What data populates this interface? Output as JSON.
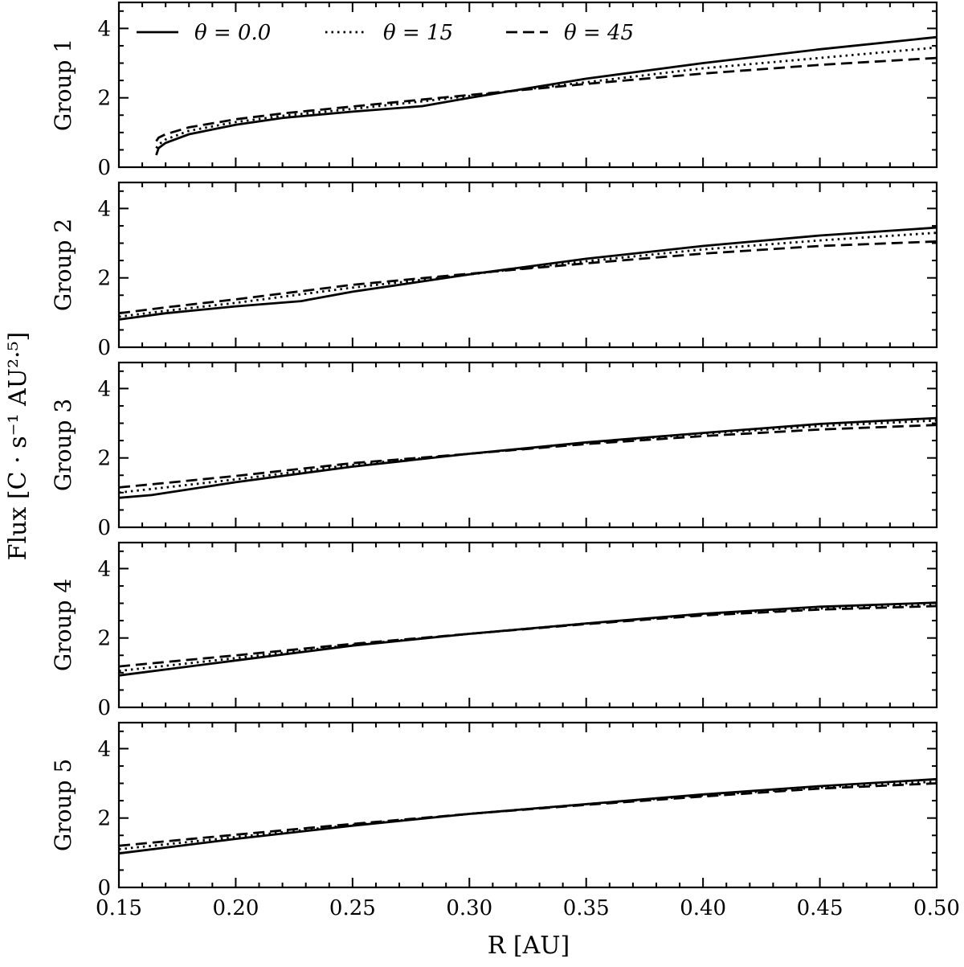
{
  "chart_data": {
    "type": "line",
    "xlabel": "R [AU]",
    "ylabel": "Flux [C · s⁻¹ AU²·⁵]",
    "xlim": [
      0.15,
      0.5
    ],
    "ylim": [
      0,
      4.75
    ],
    "x_ticks": [
      "0.15",
      "0.20",
      "0.25",
      "0.30",
      "0.35",
      "0.40",
      "0.45",
      "0.50"
    ],
    "y_ticks": [
      "0",
      "2",
      "4"
    ],
    "legend": {
      "placement": "top (inside first panel)",
      "entries": [
        {
          "label": "θ = 0.0",
          "style": "solid"
        },
        {
          "label": "θ = 15",
          "style": "dotted"
        },
        {
          "label": "θ = 45",
          "style": "dashed"
        }
      ]
    },
    "panels": [
      {
        "label": "Group 1",
        "series": [
          {
            "style": "solid",
            "x": [
              0.166,
              0.167,
              0.17,
              0.18,
              0.2,
              0.22,
              0.25,
              0.28,
              0.3,
              0.35,
              0.4,
              0.45,
              0.5
            ],
            "y": [
              0.35,
              0.55,
              0.7,
              0.95,
              1.22,
              1.42,
              1.6,
              1.76,
              2.0,
              2.55,
              3.0,
              3.4,
              3.75
            ]
          },
          {
            "style": "dotted",
            "x": [
              0.166,
              0.167,
              0.17,
              0.18,
              0.2,
              0.22,
              0.25,
              0.28,
              0.3,
              0.35,
              0.4,
              0.45,
              0.5
            ],
            "y": [
              0.55,
              0.65,
              0.8,
              1.05,
              1.3,
              1.48,
              1.68,
              1.9,
              2.05,
              2.45,
              2.85,
              3.15,
              3.45
            ]
          },
          {
            "style": "dashed",
            "x": [
              0.166,
              0.167,
              0.17,
              0.18,
              0.2,
              0.22,
              0.25,
              0.28,
              0.3,
              0.35,
              0.4,
              0.45,
              0.5
            ],
            "y": [
              0.75,
              0.85,
              0.95,
              1.15,
              1.38,
              1.55,
              1.75,
              1.95,
              2.08,
              2.4,
              2.7,
              2.95,
              3.15
            ]
          }
        ]
      },
      {
        "label": "Group 2",
        "series": [
          {
            "style": "solid",
            "x": [
              0.15,
              0.17,
              0.2,
              0.228,
              0.25,
              0.3,
              0.35,
              0.4,
              0.45,
              0.5
            ],
            "y": [
              0.8,
              0.98,
              1.18,
              1.33,
              1.6,
              2.1,
              2.55,
              2.92,
              3.22,
              3.45
            ]
          },
          {
            "style": "dotted",
            "x": [
              0.15,
              0.17,
              0.2,
              0.25,
              0.3,
              0.35,
              0.4,
              0.45,
              0.5
            ],
            "y": [
              0.88,
              1.05,
              1.28,
              1.72,
              2.1,
              2.48,
              2.82,
              3.08,
              3.3
            ]
          },
          {
            "style": "dashed",
            "x": [
              0.15,
              0.17,
              0.2,
              0.25,
              0.3,
              0.35,
              0.4,
              0.45,
              0.5
            ],
            "y": [
              0.98,
              1.15,
              1.38,
              1.8,
              2.12,
              2.42,
              2.7,
              2.92,
              3.05
            ]
          }
        ]
      },
      {
        "label": "Group 3",
        "series": [
          {
            "style": "solid",
            "x": [
              0.15,
              0.164,
              0.2,
              0.25,
              0.3,
              0.35,
              0.4,
              0.45,
              0.5
            ],
            "y": [
              0.85,
              0.93,
              1.3,
              1.75,
              2.12,
              2.45,
              2.72,
              2.98,
              3.15
            ]
          },
          {
            "style": "dotted",
            "x": [
              0.15,
              0.17,
              0.2,
              0.25,
              0.3,
              0.35,
              0.4,
              0.45,
              0.5
            ],
            "y": [
              1.0,
              1.15,
              1.38,
              1.8,
              2.12,
              2.43,
              2.7,
              2.92,
              3.08
            ]
          },
          {
            "style": "dashed",
            "x": [
              0.15,
              0.17,
              0.2,
              0.25,
              0.3,
              0.35,
              0.4,
              0.45,
              0.5
            ],
            "y": [
              1.15,
              1.28,
              1.48,
              1.85,
              2.12,
              2.4,
              2.63,
              2.82,
              2.95
            ]
          }
        ]
      },
      {
        "label": "Group 4",
        "series": [
          {
            "style": "solid",
            "x": [
              0.15,
              0.2,
              0.25,
              0.3,
              0.35,
              0.4,
              0.45,
              0.5
            ],
            "y": [
              0.92,
              1.35,
              1.78,
              2.12,
              2.42,
              2.7,
              2.9,
              3.02
            ]
          },
          {
            "style": "dotted",
            "x": [
              0.15,
              0.2,
              0.25,
              0.3,
              0.35,
              0.4,
              0.45,
              0.5
            ],
            "y": [
              1.05,
              1.42,
              1.8,
              2.12,
              2.42,
              2.68,
              2.85,
              2.98
            ]
          },
          {
            "style": "dashed",
            "x": [
              0.15,
              0.2,
              0.25,
              0.3,
              0.35,
              0.4,
              0.45,
              0.5
            ],
            "y": [
              1.18,
              1.5,
              1.83,
              2.12,
              2.4,
              2.65,
              2.82,
              2.92
            ]
          }
        ]
      },
      {
        "label": "Group 5",
        "series": [
          {
            "style": "solid",
            "x": [
              0.15,
              0.2,
              0.25,
              0.3,
              0.35,
              0.4,
              0.45,
              0.5
            ],
            "y": [
              0.98,
              1.4,
              1.78,
              2.12,
              2.4,
              2.68,
              2.92,
              3.12
            ]
          },
          {
            "style": "dotted",
            "x": [
              0.15,
              0.2,
              0.25,
              0.3,
              0.35,
              0.4,
              0.45,
              0.5
            ],
            "y": [
              1.1,
              1.45,
              1.8,
              2.12,
              2.4,
              2.65,
              2.88,
              3.05
            ]
          },
          {
            "style": "dashed",
            "x": [
              0.15,
              0.2,
              0.25,
              0.3,
              0.35,
              0.4,
              0.45,
              0.5
            ],
            "y": [
              1.2,
              1.52,
              1.83,
              2.12,
              2.38,
              2.62,
              2.85,
              3.0
            ]
          }
        ]
      }
    ]
  }
}
